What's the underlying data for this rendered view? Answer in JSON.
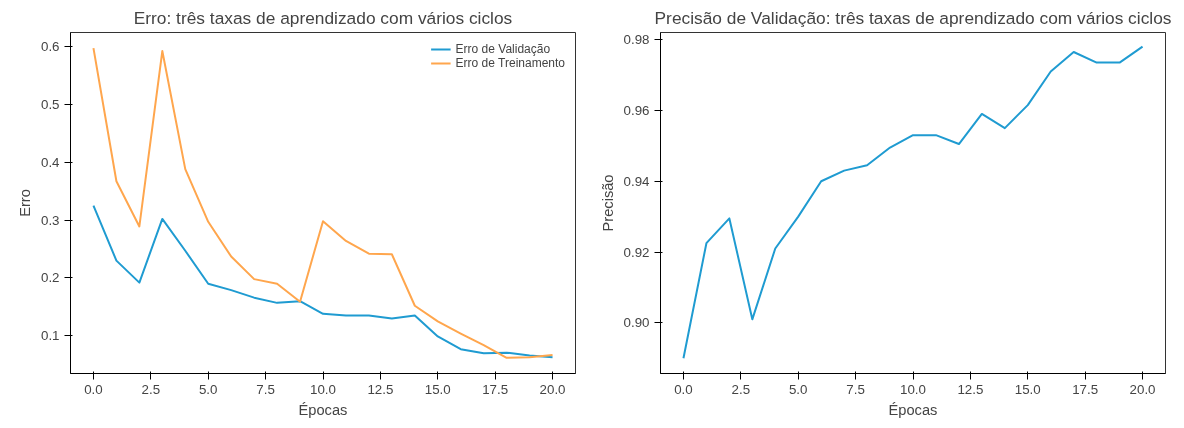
{
  "chart_data": [
    {
      "type": "line",
      "title": "Erro: três taxas de aprendizado com vários ciclos",
      "xlabel": "Épocas",
      "ylabel": "Erro",
      "x": [
        0,
        1,
        2,
        3,
        4,
        5,
        6,
        7,
        8,
        9,
        10,
        11,
        12,
        13,
        14,
        15,
        16,
        17,
        18,
        19,
        20
      ],
      "series": [
        {
          "name": "Erro de Validação",
          "color": "#1f9bd1",
          "values": [
            0.325,
            0.23,
            0.192,
            0.302,
            0.247,
            0.19,
            0.179,
            0.166,
            0.157,
            0.16,
            0.138,
            0.135,
            0.135,
            0.13,
            0.135,
            0.099,
            0.077,
            0.07,
            0.071,
            0.066,
            0.063
          ]
        },
        {
          "name": "Erro de Treinamento",
          "color": "#ffa64d",
          "values": [
            0.597,
            0.367,
            0.289,
            0.592,
            0.388,
            0.297,
            0.237,
            0.198,
            0.19,
            0.159,
            0.298,
            0.264,
            0.242,
            0.241,
            0.152,
            0.125,
            0.104,
            0.084,
            0.062,
            0.063,
            0.067
          ]
        }
      ],
      "xlim": [
        -1,
        21
      ],
      "xticks": [
        {
          "value": 0,
          "label": "0.0"
        },
        {
          "value": 2.5,
          "label": "2.5"
        },
        {
          "value": 5,
          "label": "5.0"
        },
        {
          "value": 7.5,
          "label": "7.5"
        },
        {
          "value": 10,
          "label": "10.0"
        },
        {
          "value": 12.5,
          "label": "12.5"
        },
        {
          "value": 15,
          "label": "15.0"
        },
        {
          "value": 17.5,
          "label": "17.5"
        },
        {
          "value": 20,
          "label": "20.0"
        }
      ],
      "ylim": [
        0.035,
        0.624
      ],
      "yticks": [
        0.1,
        0.2,
        0.3,
        0.4,
        0.5,
        0.6
      ],
      "grid": false,
      "legend": "top right"
    },
    {
      "type": "line",
      "title": "Precisão de Validação: três taxas de aprendizado com vários ciclos",
      "xlabel": "Épocas",
      "ylabel": "Precisão",
      "x": [
        0,
        1,
        2,
        3,
        4,
        5,
        6,
        7,
        8,
        9,
        10,
        11,
        12,
        13,
        14,
        15,
        16,
        17,
        18,
        19,
        20
      ],
      "series": [
        {
          "color": "#1f9bd1",
          "values": [
            0.89,
            0.9225,
            0.9295,
            0.901,
            0.921,
            0.93,
            0.94,
            0.943,
            0.9445,
            0.9495,
            0.953,
            0.953,
            0.9505,
            0.959,
            0.955,
            0.9615,
            0.971,
            0.9765,
            0.9735,
            0.9735,
            0.978
          ]
        }
      ],
      "xlim": [
        -1,
        21
      ],
      "xticks": [
        {
          "value": 0,
          "label": "0.0"
        },
        {
          "value": 2.5,
          "label": "2.5"
        },
        {
          "value": 5,
          "label": "5.0"
        },
        {
          "value": 7.5,
          "label": "7.5"
        },
        {
          "value": 10,
          "label": "10.0"
        },
        {
          "value": 12.5,
          "label": "12.5"
        },
        {
          "value": 15,
          "label": "15.0"
        },
        {
          "value": 17.5,
          "label": "17.5"
        },
        {
          "value": 20,
          "label": "20.0"
        }
      ],
      "ylim": [
        0.8857,
        0.982
      ],
      "yticks": [
        {
          "value": 0.9,
          "label": "0.90"
        },
        {
          "value": 0.92,
          "label": "0.92"
        },
        {
          "value": 0.94,
          "label": "0.94"
        },
        {
          "value": 0.96,
          "label": "0.96"
        },
        {
          "value": 0.98,
          "label": "0.98"
        }
      ],
      "grid": false
    }
  ]
}
